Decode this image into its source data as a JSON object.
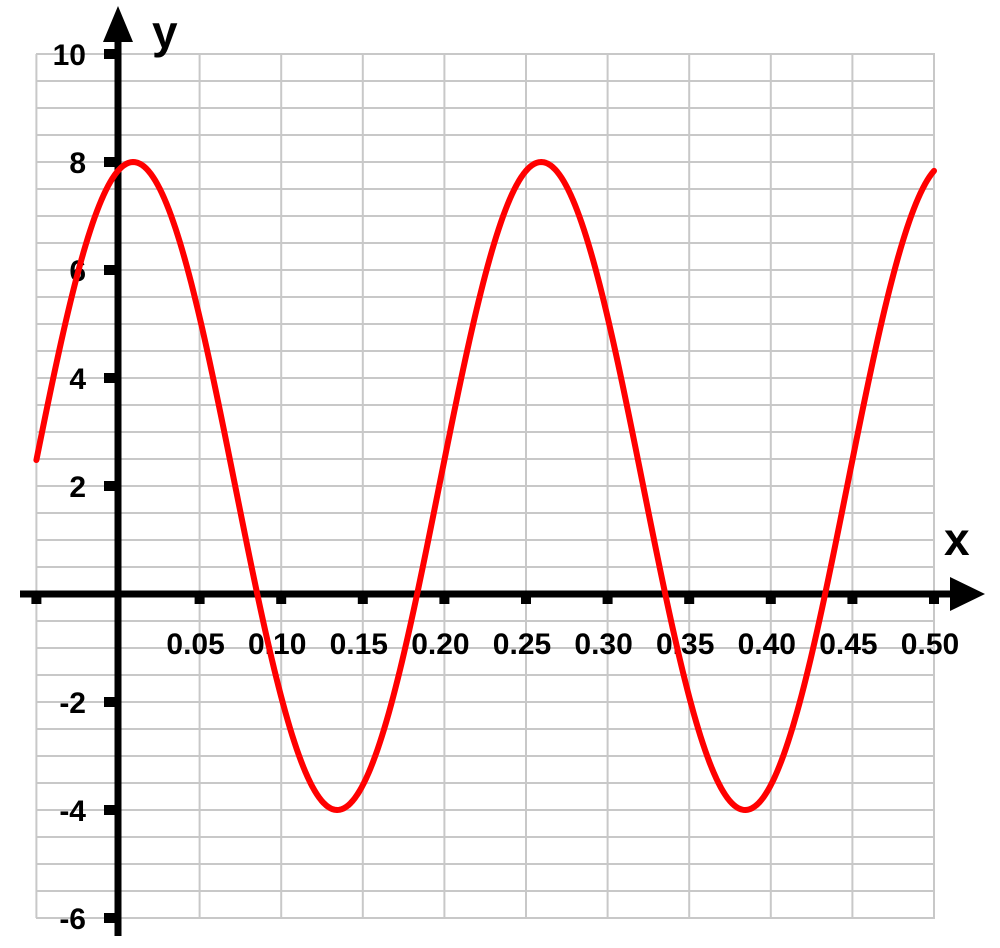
{
  "chart_data": {
    "type": "line",
    "xlabel": "x",
    "ylabel": "y",
    "xlim": [
      -0.05,
      0.5
    ],
    "ylim": [
      -6,
      10
    ],
    "x_ticks": [
      0.05,
      0.1,
      0.15,
      0.2,
      0.25,
      0.3,
      0.35,
      0.4,
      0.45,
      0.5
    ],
    "x_tick_labels": [
      "0.05",
      "0.10",
      "0.15",
      "0.20",
      "0.25",
      "0.30",
      "0.35",
      "0.40",
      "0.45",
      "0.50"
    ],
    "y_ticks": [
      10,
      8,
      6,
      4,
      2,
      -2,
      -4,
      -6
    ],
    "y_tick_labels": [
      "10",
      "8",
      "6",
      "4",
      "2",
      "-2",
      "-4",
      "-6"
    ],
    "x_grid_step": 0.05,
    "y_grid_step": 0.5,
    "grid": true,
    "series": [
      {
        "color": "#ff0000",
        "function": "y = 2 + 6*sin(8*pi*x + pi/2.35)",
        "x": [
          -0.05,
          0.0,
          0.0125,
          0.05,
          0.0875,
          0.1375,
          0.1875,
          0.2625,
          0.3375,
          0.3875,
          0.4375,
          0.5
        ],
        "y": [
          2.0,
          7.5,
          8.0,
          5.8,
          0.0,
          -4.0,
          0.0,
          8.0,
          0.0,
          -4.0,
          0.0,
          7.6
        ]
      }
    ]
  }
}
